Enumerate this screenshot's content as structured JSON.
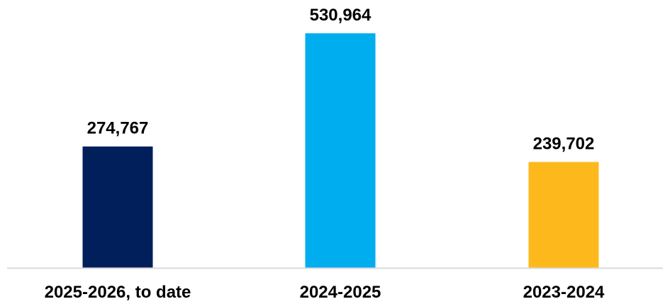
{
  "chart_data": {
    "type": "bar",
    "categories": [
      "2025-2026, to date",
      "2024-2025",
      "2023-2024"
    ],
    "values": [
      274767,
      530964,
      239702
    ],
    "value_labels": [
      "274,767",
      "530,964",
      "239,702"
    ],
    "colors": [
      "#001f5b",
      "#00adef",
      "#fdb91c"
    ],
    "axis_color": "#d9d9d9",
    "title": "",
    "xlabel": "",
    "ylabel": "",
    "ylim": [
      0,
      530964
    ],
    "grid": false,
    "legend": "none"
  }
}
